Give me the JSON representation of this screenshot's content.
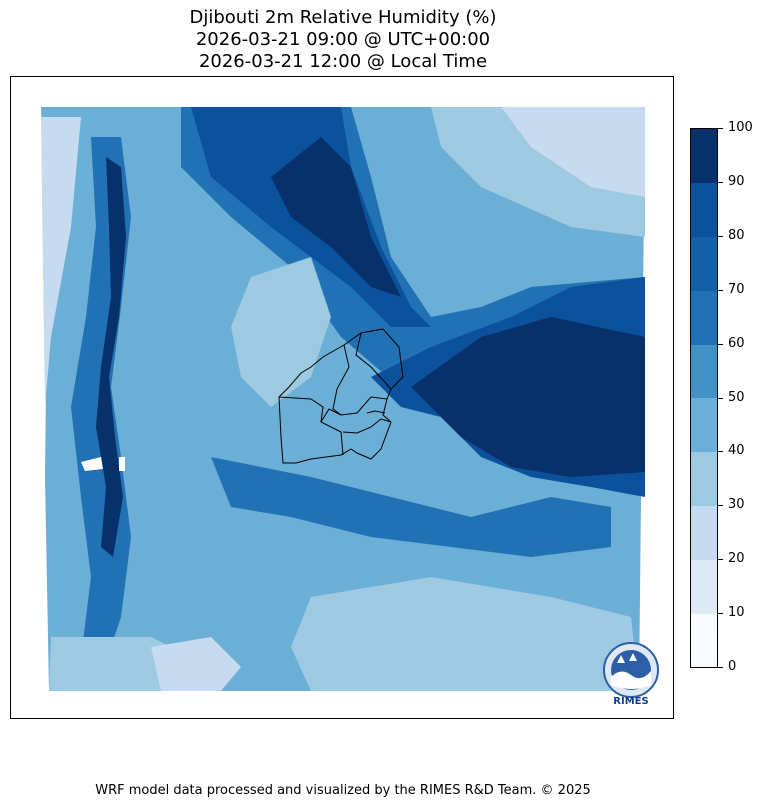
{
  "title": {
    "line1": "Djibouti 2m Relative Humidity (%)",
    "line2": "2026-03-21 09:00 @ UTC+00:00",
    "line3": "2026-03-21 12:00 @ Local Time"
  },
  "colorbar": {
    "ticks": [
      "0",
      "10",
      "20",
      "30",
      "40",
      "50",
      "60",
      "70",
      "80",
      "90",
      "100"
    ],
    "colors": [
      "#f7fbff",
      "#deebf7",
      "#c6dbef",
      "#9ecae1",
      "#6baed6",
      "#4292c6",
      "#2171b5",
      "#1460a8",
      "#0b519c",
      "#08306b"
    ]
  },
  "logo": {
    "text": "RIMES"
  },
  "footer": "WRF model data processed and visualized by the RIMES R&D Team. © 2025"
}
